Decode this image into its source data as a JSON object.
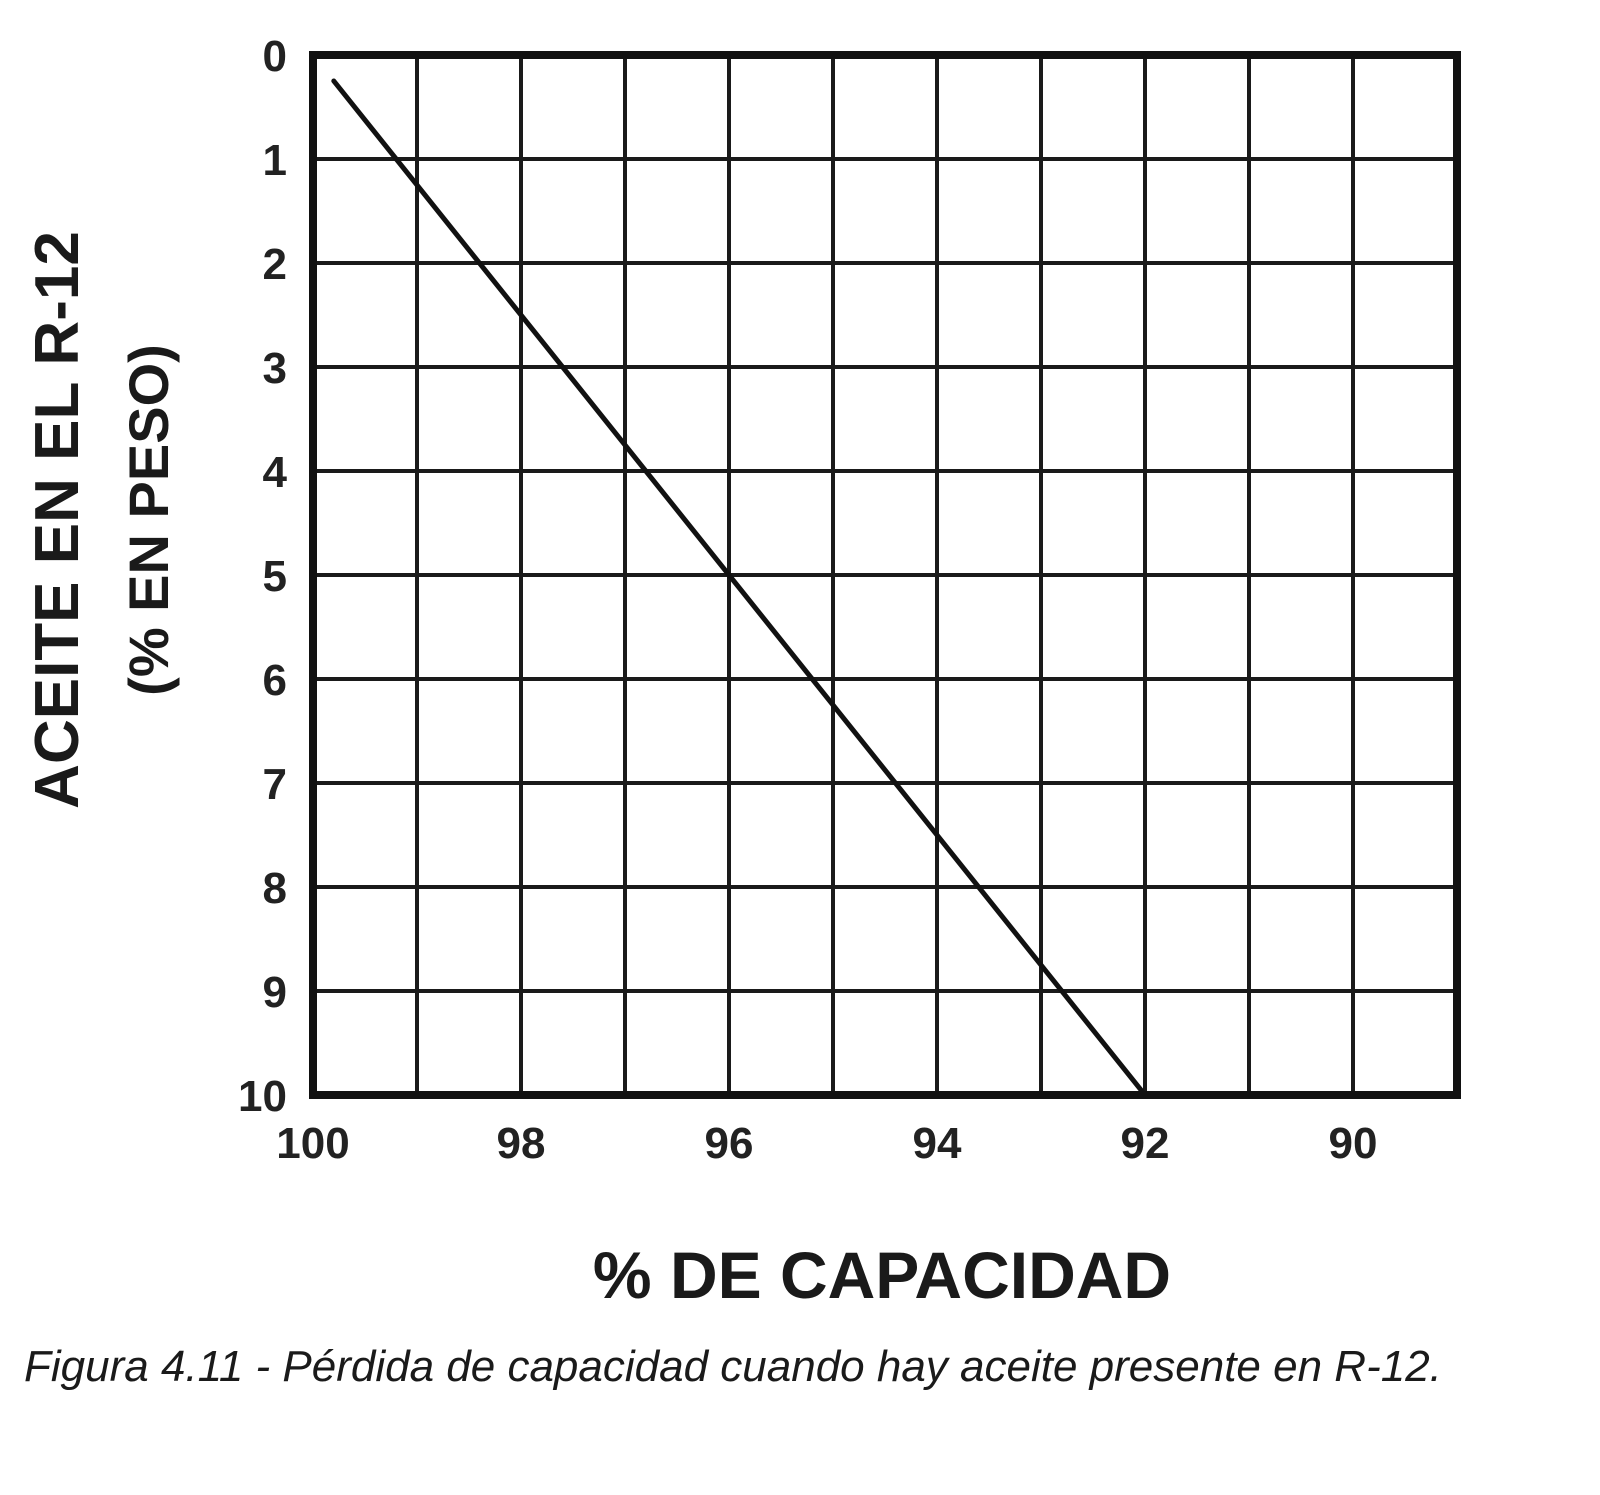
{
  "chart_data": {
    "type": "line",
    "xlabel": "% DE CAPACIDAD",
    "ylabel": "ACEITE EN EL R-12",
    "ylabel_sub": "(% EN PESO)",
    "x_ticks": [
      "100",
      "98",
      "96",
      "94",
      "92",
      "90"
    ],
    "y_ticks": [
      "0",
      "1",
      "2",
      "3",
      "4",
      "5",
      "6",
      "7",
      "8",
      "9",
      "10"
    ],
    "xlim": [
      100,
      89
    ],
    "ylim": [
      0,
      10
    ],
    "x_reversed": true,
    "y_reversed": true,
    "grid": true,
    "series": [
      {
        "x": [
          99.8,
          92.0
        ],
        "y": [
          0.25,
          10.0
        ]
      }
    ],
    "line_color": "#111111",
    "grid_color": "#1a1a1a"
  },
  "caption": "Figura 4.11 - Pérdida de capacidad cuando hay aceite presente en R-12."
}
